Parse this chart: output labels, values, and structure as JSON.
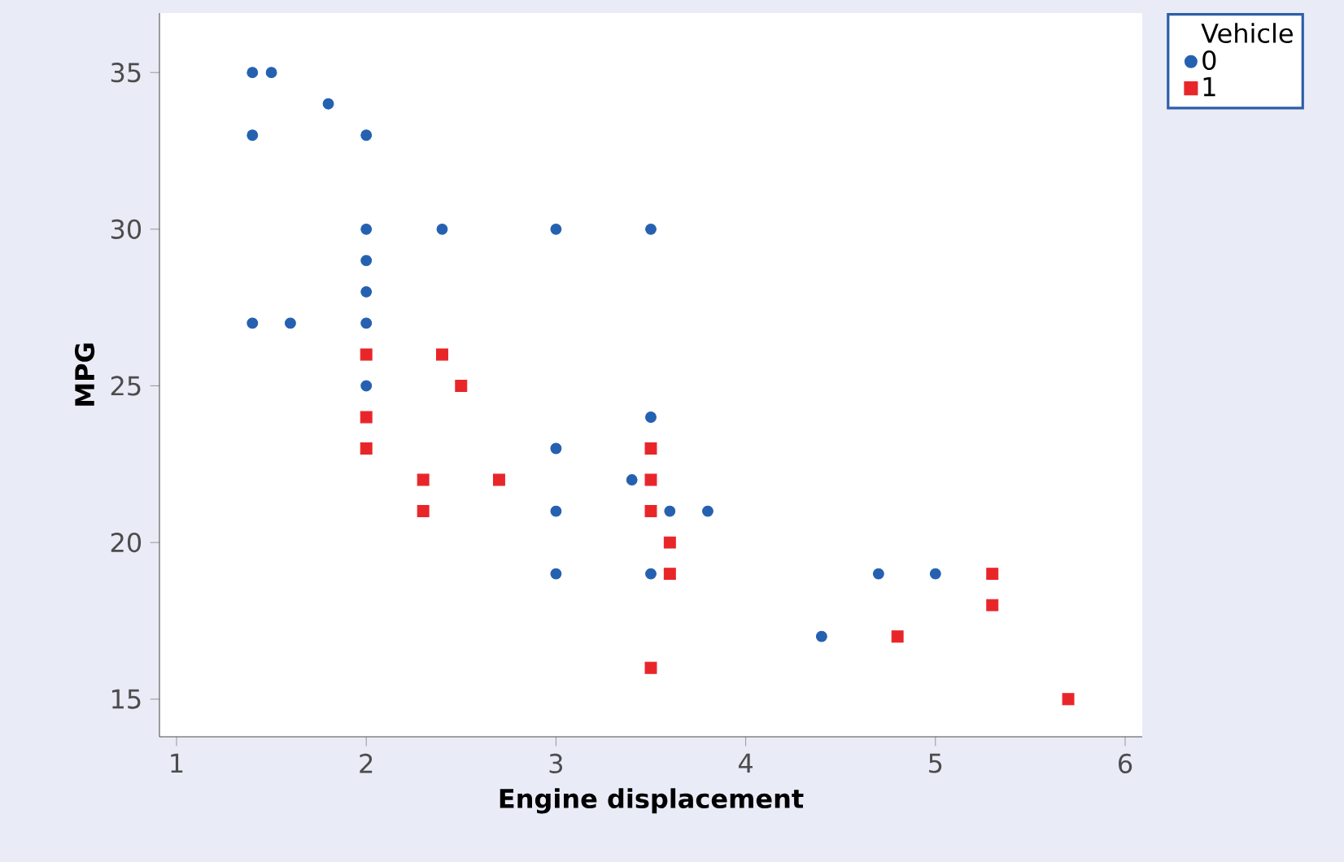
{
  "chart_data": {
    "type": "scatter",
    "xlabel": "Engine displacement",
    "ylabel": "MPG",
    "legend_title": "Vehicle",
    "legend": "top right",
    "grid": false,
    "xlim": [
      0.91,
      6.09
    ],
    "ylim": [
      13.8,
      36.9
    ],
    "xticks": [
      1,
      2,
      3,
      4,
      5,
      6
    ],
    "yticks": [
      15,
      20,
      25,
      30,
      35
    ],
    "series": [
      {
        "name": "0",
        "color": "#2561b0",
        "marker": "circle",
        "x": [
          1.4,
          1.5,
          1.4,
          1.8,
          2,
          2,
          2.4,
          3,
          3.5,
          2,
          2,
          1.4,
          1.6,
          2,
          2,
          3.5,
          3,
          3.4,
          3,
          3.6,
          3.8,
          3,
          3.5,
          4.7,
          5,
          4.4
        ],
        "values": [
          35,
          35,
          33,
          34,
          33,
          30,
          30,
          30,
          30,
          29,
          28,
          27,
          27,
          27,
          25,
          24,
          23,
          22,
          21,
          21,
          21,
          19,
          19,
          19,
          19,
          17
        ]
      },
      {
        "name": "1",
        "color": "#e8262a",
        "marker": "square",
        "x": [
          2,
          2.4,
          2.5,
          2,
          2,
          2.3,
          2.7,
          2.3,
          3.5,
          3.5,
          3.5,
          3.6,
          3.6,
          3.5,
          4.8,
          5.3,
          5.3,
          5.7
        ],
        "values": [
          26,
          26,
          25,
          24,
          23,
          22,
          22,
          21,
          23,
          22,
          21,
          20,
          19,
          16,
          17,
          19,
          18,
          15
        ]
      }
    ]
  }
}
